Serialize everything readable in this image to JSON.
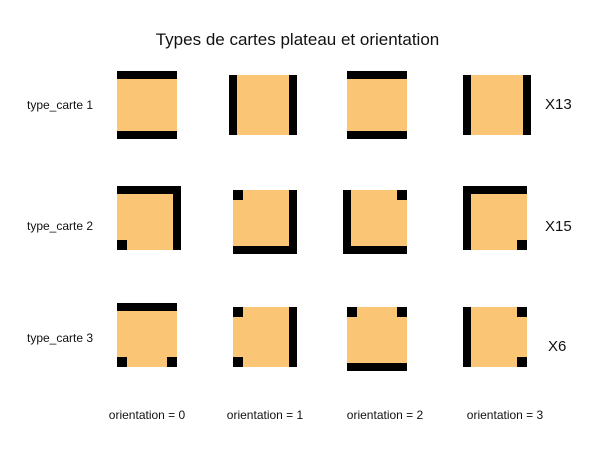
{
  "title": "Types de cartes plateau et orientation",
  "colors": {
    "tile": "#fac675",
    "border": "#000000"
  },
  "rows": [
    {
      "label": "type_carte 1",
      "count": "X13",
      "walls": [
        "top",
        "bottom"
      ],
      "corners": []
    },
    {
      "label": "type_carte 2",
      "count": "X15",
      "walls": [
        "top",
        "right"
      ],
      "corners": [
        "bottom-left"
      ]
    },
    {
      "label": "type_carte 3",
      "count": "X6",
      "walls": [
        "top"
      ],
      "corners": [
        "bottom-left",
        "bottom-right"
      ]
    }
  ],
  "columns": [
    {
      "label": "orientation = 0",
      "rotation": 0
    },
    {
      "label": "orientation = 1",
      "rotation": 1
    },
    {
      "label": "orientation = 2",
      "rotation": 2
    },
    {
      "label": "orientation = 3",
      "rotation": 3
    }
  ]
}
